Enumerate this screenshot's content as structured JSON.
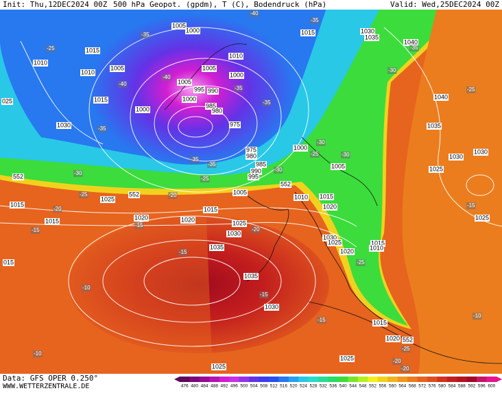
{
  "header": {
    "init": "Init: Thu,12DEC2024 00Z",
    "title": "500 hPa Geopot. (gpdm), T (C), Bodendruck (hPa)",
    "valid": "Valid: Wed,25DEC2024 00Z"
  },
  "footer": {
    "source": "Data: GFS OPER 0.250°",
    "site": "WWW.WETTERZENTRALE.DE"
  },
  "pressure_labels": [
    "1005",
    "1000",
    "1015",
    "1030",
    "1035",
    "1040",
    "1015",
    "1010",
    "1010",
    "1005",
    "1005",
    "1010",
    "1000",
    "1005",
    "995",
    "990",
    "1015",
    "1000",
    "985",
    "980",
    "1040",
    "1000",
    "1030",
    "975",
    "1035",
    "1000",
    "975",
    "980",
    "985",
    "1030",
    "1005",
    "990",
    "1025",
    "995",
    "1030",
    "1005",
    "1010",
    "1025",
    "1015",
    "1020",
    "1015",
    "1015",
    "1020",
    "1015",
    "1020",
    "1025",
    "1025",
    "1030",
    "1030",
    "1025",
    "1015",
    "1010",
    "1035",
    "1020",
    "015",
    "1035",
    "1030",
    "1015",
    "1020",
    "1025",
    "1025",
    "025"
  ],
  "geopotential_labels": [
    "552",
    "552",
    "552",
    "552"
  ],
  "temperature_labels": [
    "-40",
    "-35",
    "-25",
    "-35",
    "-30",
    "-35",
    "-25",
    "-40",
    "-40",
    "-35",
    "-35",
    "-35",
    "-30",
    "-25",
    "-30",
    "-35",
    "-35",
    "-30",
    "-25",
    "-30",
    "-25",
    "-20",
    "-20",
    "-15",
    "-15",
    "-15",
    "-20",
    "-15",
    "-25",
    "-10",
    "-15",
    "-10",
    "-15",
    "-25",
    "-20",
    "-10",
    "-20"
  ],
  "color_scale": {
    "labels": [
      476,
      480,
      484,
      488,
      492,
      496,
      500,
      504,
      508,
      512,
      516,
      520,
      524,
      528,
      532,
      536,
      540,
      544,
      548,
      552,
      556,
      560,
      564,
      568,
      572,
      576,
      580,
      584,
      588,
      592,
      596,
      600
    ],
    "colors": [
      "#5c0a5c",
      "#7a0a7a",
      "#960c96",
      "#b414b4",
      "#d21ed2",
      "#c832e6",
      "#9632e6",
      "#6432e6",
      "#3c3cf0",
      "#2850f0",
      "#2878f0",
      "#28a0f0",
      "#28c8e6",
      "#28dcc8",
      "#28dc96",
      "#28dc64",
      "#3cdc3c",
      "#78e628",
      "#b4f01e",
      "#f0f01e",
      "#f0d21e",
      "#f0b41e",
      "#f0961e",
      "#eb7d1e",
      "#e6641e",
      "#dc501e",
      "#d2321e",
      "#c31e1e",
      "#b4141e",
      "#a00a28",
      "#c81464",
      "#e6148c"
    ]
  }
}
